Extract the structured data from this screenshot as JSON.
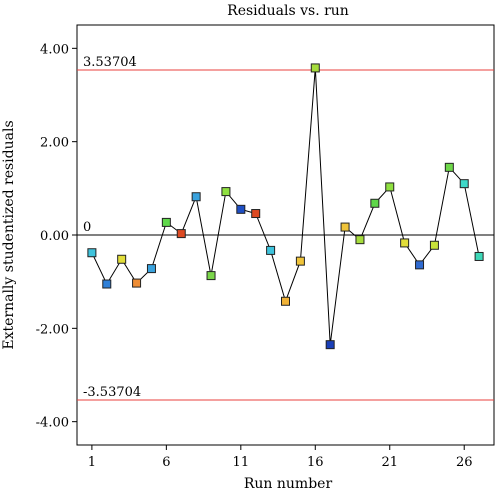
{
  "chart_data": {
    "type": "scatter",
    "title": "Residuals vs. run",
    "xlabel": "Run number",
    "ylabel": "Externally studentized residuals",
    "xlim": [
      0,
      28
    ],
    "ylim": [
      -4.5,
      4.5
    ],
    "x_ticks": [
      1,
      6,
      11,
      16,
      21,
      26
    ],
    "y_ticks": [
      4,
      2,
      0,
      -2,
      -4
    ],
    "y_tick_labels": [
      "4.00",
      "2.00",
      "0.00",
      "-2.00",
      "-4.00"
    ],
    "connected": true,
    "reference_lines": [
      {
        "value": 3.53704,
        "label": "3.53704",
        "color": "#e8413c"
      },
      {
        "value": 0,
        "label": "0",
        "color": "#000000"
      },
      {
        "value": -3.53704,
        "label": "-3.53704",
        "color": "#e8413c"
      }
    ],
    "points": [
      {
        "x": 1,
        "y": -0.38,
        "color": "#3ec3dc"
      },
      {
        "x": 2,
        "y": -1.05,
        "color": "#2f80d8"
      },
      {
        "x": 3,
        "y": -0.52,
        "color": "#e2de3a"
      },
      {
        "x": 4,
        "y": -1.03,
        "color": "#ee8d35"
      },
      {
        "x": 5,
        "y": -0.72,
        "color": "#3aa2dd"
      },
      {
        "x": 6,
        "y": 0.27,
        "color": "#5fd84a"
      },
      {
        "x": 7,
        "y": 0.03,
        "color": "#dd4a22"
      },
      {
        "x": 8,
        "y": 0.82,
        "color": "#3aa2dd"
      },
      {
        "x": 9,
        "y": -0.87,
        "color": "#7bd64a"
      },
      {
        "x": 10,
        "y": 0.93,
        "color": "#8fe040"
      },
      {
        "x": 11,
        "y": 0.55,
        "color": "#1f4fc4"
      },
      {
        "x": 12,
        "y": 0.46,
        "color": "#dd4a22"
      },
      {
        "x": 13,
        "y": -0.33,
        "color": "#3ec3dc"
      },
      {
        "x": 14,
        "y": -1.42,
        "color": "#f0b237"
      },
      {
        "x": 15,
        "y": -0.56,
        "color": "#f0c43a"
      },
      {
        "x": 16,
        "y": 3.58,
        "color": "#a6dd3c"
      },
      {
        "x": 17,
        "y": -2.35,
        "color": "#1a3fb8"
      },
      {
        "x": 18,
        "y": 0.17,
        "color": "#f0c43a"
      },
      {
        "x": 19,
        "y": -0.1,
        "color": "#a6dd3c"
      },
      {
        "x": 20,
        "y": 0.68,
        "color": "#5fd84a"
      },
      {
        "x": 21,
        "y": 1.03,
        "color": "#8fe040"
      },
      {
        "x": 22,
        "y": -0.17,
        "color": "#e2de3a"
      },
      {
        "x": 23,
        "y": -0.64,
        "color": "#2f6ad0"
      },
      {
        "x": 24,
        "y": -0.22,
        "color": "#c8e23a"
      },
      {
        "x": 25,
        "y": 1.45,
        "color": "#6ed84a"
      },
      {
        "x": 26,
        "y": 1.1,
        "color": "#3ed8c8"
      },
      {
        "x": 27,
        "y": -0.46,
        "color": "#3ed8b8"
      }
    ]
  }
}
